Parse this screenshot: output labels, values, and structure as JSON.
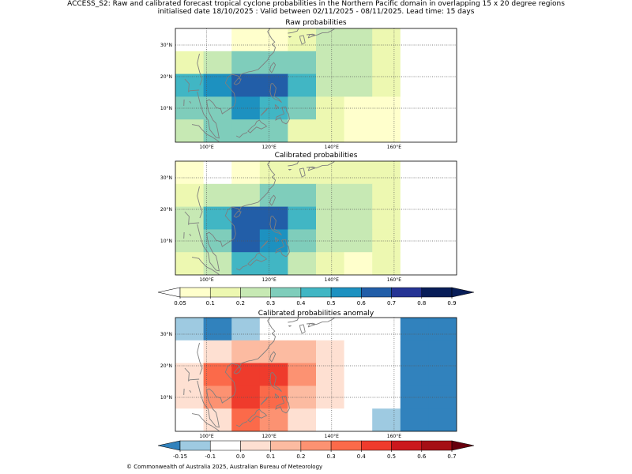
{
  "header": {
    "line1": "ACCESS_S2: Raw and calibrated forecast tropical cyclone probabilities in the Northern Pacific domain in overlapping 15 x 20 degree regions",
    "line2": "initialised date 18/10/2025 :  Valid between 02/11/2025 - 08/11/2025. Lead time: 15 days"
  },
  "panels": [
    {
      "id": "raw",
      "title": "Raw probabilities",
      "scale": "prob",
      "grid": [
        [
          "#ffffff",
          "#ffffff",
          "#ffffcc",
          "#ffffcc",
          "#edf8b1",
          "#c7e9b4",
          "#c7e9b4",
          "#edf8b1",
          "#ffffff",
          "#ffffff"
        ],
        [
          "#edf8b1",
          "#c7e9b4",
          "#7fcdbb",
          "#7fcdbb",
          "#7fcdbb",
          "#c7e9b4",
          "#c7e9b4",
          "#edf8b1",
          "#ffffff",
          "#ffffff"
        ],
        [
          "#41b6c4",
          "#1d91c0",
          "#225ea8",
          "#225ea8",
          "#41b6c4",
          "#c7e9b4",
          "#c7e9b4",
          "#edf8b1",
          "#ffffff",
          "#ffffff"
        ],
        [
          "#7fcdbb",
          "#7fcdbb",
          "#1d91c0",
          "#41b6c4",
          "#7fcdbb",
          "#edf8b1",
          "#ffffcc",
          "#ffffcc",
          "#ffffff",
          "#ffffff"
        ],
        [
          "#c7e9b4",
          "#7fcdbb",
          "#7fcdbb",
          "#7fcdbb",
          "#edf8b1",
          "#edf8b1",
          "#ffffcc",
          "#ffffcc",
          "#ffffff",
          "#ffffff"
        ]
      ]
    },
    {
      "id": "calibrated",
      "title": "Calibrated probabilities",
      "scale": "prob",
      "grid": [
        [
          "#ffffcc",
          "#ffffff",
          "#ffffcc",
          "#edf8b1",
          "#edf8b1",
          "#edf8b1",
          "#edf8b1",
          "#edf8b1",
          "#ffffff",
          "#ffffff"
        ],
        [
          "#edf8b1",
          "#c7e9b4",
          "#c7e9b4",
          "#7fcdbb",
          "#7fcdbb",
          "#c7e9b4",
          "#c7e9b4",
          "#edf8b1",
          "#ffffff",
          "#ffffff"
        ],
        [
          "#c7e9b4",
          "#41b6c4",
          "#225ea8",
          "#225ea8",
          "#41b6c4",
          "#c7e9b4",
          "#c7e9b4",
          "#edf8b1",
          "#ffffff",
          "#ffffff"
        ],
        [
          "#c7e9b4",
          "#7fcdbb",
          "#225ea8",
          "#1d91c0",
          "#7fcdbb",
          "#c7e9b4",
          "#c7e9b4",
          "#edf8b1",
          "#ffffff",
          "#ffffff"
        ],
        [
          "#edf8b1",
          "#c7e9b4",
          "#41b6c4",
          "#41b6c4",
          "#c7e9b4",
          "#edf8b1",
          "#ffffcc",
          "#edf8b1",
          "#ffffff",
          "#ffffff"
        ]
      ]
    },
    {
      "id": "anomaly",
      "title": "Calibrated probabilities anomaly",
      "scale": "anom",
      "grid": [
        [
          "#9ecae1",
          "#3182bd",
          "#9ecae1",
          "#ffffff",
          "#ffffff",
          "#ffffff",
          "#ffffff",
          "#ffffff",
          "#3182bd",
          "#3182bd"
        ],
        [
          "#ffffff",
          "#fee0d2",
          "#fcbba1",
          "#fcbba1",
          "#fcbba1",
          "#fee0d2",
          "#ffffff",
          "#ffffff",
          "#3182bd",
          "#3182bd"
        ],
        [
          "#fee0d2",
          "#fb6a4a",
          "#ef3b2c",
          "#ef3b2c",
          "#fc9272",
          "#fee0d2",
          "#ffffff",
          "#ffffff",
          "#3182bd",
          "#3182bd"
        ],
        [
          "#fee0d2",
          "#fc9272",
          "#ef3b2c",
          "#fb6a4a",
          "#fcbba1",
          "#fee0d2",
          "#ffffff",
          "#ffffff",
          "#3182bd",
          "#3182bd"
        ],
        [
          "#ffffff",
          "#fee0d2",
          "#fb6a4a",
          "#fc9272",
          "#fee0d2",
          "#ffffff",
          "#ffffff",
          "#9ecae1",
          "#3182bd",
          "#3182bd"
        ]
      ]
    }
  ],
  "axes": {
    "x_ticks": [
      "100°E",
      "120°E",
      "140°E",
      "160°E"
    ],
    "y_ticks": [
      "30°N",
      "20°N",
      "10°N"
    ]
  },
  "colorbars": {
    "prob": {
      "ticks": [
        "0.05",
        "0.1",
        "0.2",
        "0.3",
        "0.4",
        "0.5",
        "0.6",
        "0.7",
        "0.8",
        "0.9"
      ],
      "colors": [
        "#ffffcc",
        "#edf8b1",
        "#c7e9b4",
        "#7fcdbb",
        "#41b6c4",
        "#1d91c0",
        "#225ea8",
        "#253494",
        "#081d58"
      ],
      "under": "#ffffff",
      "over": "#081d58"
    },
    "anom": {
      "ticks": [
        "-0.15",
        "-0.1",
        "0.0",
        "0.1",
        "0.2",
        "0.3",
        "0.4",
        "0.5",
        "0.6",
        "0.7"
      ],
      "colors": [
        "#9ecae1",
        "#ffffff",
        "#fee0d2",
        "#fcbba1",
        "#fc9272",
        "#fb6a4a",
        "#ef3b2c",
        "#cb181d",
        "#a50f15"
      ],
      "under": "#3182bd",
      "over": "#67000d"
    }
  },
  "footer": "© Commonwealth of Australia 2025, Australian Bureau of Meteorology"
}
